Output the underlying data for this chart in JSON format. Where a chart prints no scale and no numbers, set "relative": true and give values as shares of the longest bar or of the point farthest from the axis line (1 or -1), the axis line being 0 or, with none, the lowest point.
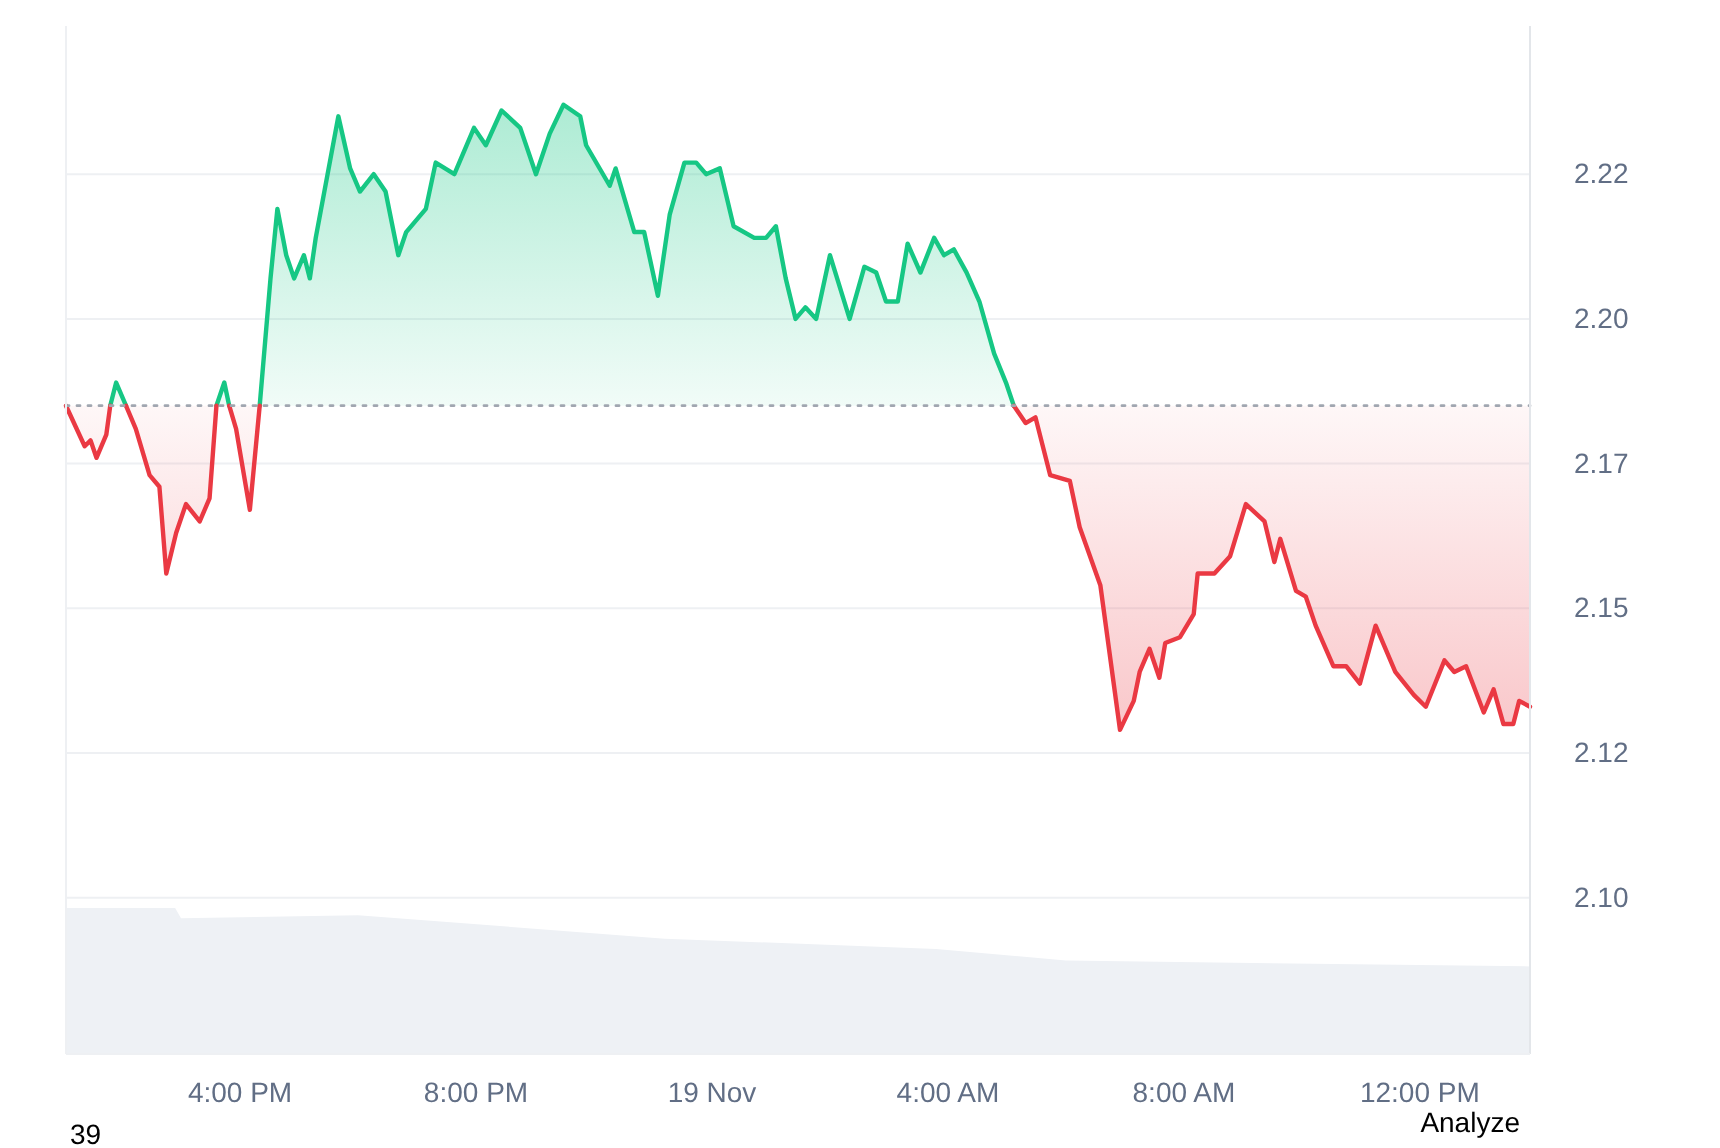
{
  "chart_data": [
    {
      "type": "line",
      "xlim": [
        "--11-18T13:03",
        "--11-19T13:52"
      ],
      "ylim": [
        2.073,
        2.2506
      ],
      "xticks": [
        {
          "value": "--11-18T16:00",
          "label": "4:00 PM"
        },
        {
          "value": "--11-18T20:00",
          "label": "8:00 PM"
        },
        {
          "value": "--11-19T00:00",
          "label": "19 Nov"
        },
        {
          "value": "--11-19T04:00",
          "label": "4:00 AM"
        },
        {
          "value": "--11-19T08:00",
          "label": "8:00 AM"
        },
        {
          "value": "--11-19T12:00",
          "label": "12:00 PM"
        }
      ],
      "yticks": [
        {
          "value": 2.1,
          "label": "2.10"
        },
        {
          "value": 2.125,
          "label": "2.12"
        },
        {
          "value": 2.15,
          "label": "2.15"
        },
        {
          "value": 2.175,
          "label": "2.17"
        },
        {
          "value": 2.2,
          "label": "2.20"
        },
        {
          "value": 2.225,
          "label": "2.22"
        }
      ],
      "grid": "y",
      "marker": "none",
      "line_style": "solid",
      "ref_lines": [
        {
          "axis": "y",
          "value": 2.185,
          "color": "#a0a6b0",
          "line_style": "dotted"
        }
      ],
      "series": [
        {
          "color": "#16c784",
          "x": [
            "--11-18T13:48",
            "--11-18T13:54",
            "--11-18T14:04",
            "--11-18T14:14",
            "--11-18T15:36",
            "--11-18T15:44",
            "--11-18T15:49",
            "--11-18T15:56",
            "--11-18T16:20",
            "--11-18T16:31",
            "--11-18T16:38",
            "--11-18T16:47",
            "--11-18T16:55",
            "--11-18T17:05",
            "--11-18T17:11",
            "--11-18T17:17",
            "--11-18T17:40",
            "--11-18T17:52",
            "--11-18T18:02",
            "--11-18T18:16",
            "--11-18T18:28",
            "--11-18T18:41",
            "--11-18T18:49",
            "--11-18T19:09",
            "--11-18T19:19",
            "--11-18T19:38",
            "--11-18T19:58",
            "--11-18T20:10",
            "--11-18T20:26",
            "--11-18T20:45",
            "--11-18T21:01",
            "--11-18T21:15",
            "--11-18T21:29",
            "--11-18T21:46",
            "--11-18T21:52",
            "--11-18T22:16",
            "--11-18T22:22",
            "--11-18T22:41",
            "--11-18T22:51",
            "--11-18T23:05",
            "--11-18T23:17",
            "--11-18T23:32",
            "--11-18T23:44",
            "--11-18T23:54",
            "--11-19T00:08",
            "--11-19T00:22",
            "--11-19T00:43",
            "--11-19T00:55",
            "--11-19T01:05",
            "--11-19T01:15",
            "--11-19T01:25",
            "--11-19T01:35",
            "--11-19T01:46",
            "--11-19T02:00",
            "--11-19T02:20",
            "--11-19T02:35",
            "--11-19T02:47",
            "--11-19T02:57",
            "--11-19T03:09",
            "--11-19T03:19",
            "--11-19T03:32",
            "--11-19T03:46",
            "--11-19T03:56",
            "--11-19T04:06",
            "--11-19T04:19",
            "--11-19T04:32",
            "--11-19T04:47",
            "--11-19T04:59",
            "--11-19T05:07"
          ],
          "values": [
            2.185,
            2.189,
            2.185,
            null,
            2.185,
            2.189,
            2.185,
            null,
            2.185,
            2.207,
            2.219,
            2.211,
            2.207,
            2.211,
            2.207,
            2.214,
            2.235,
            2.226,
            2.222,
            2.225,
            2.222,
            2.211,
            2.215,
            2.219,
            2.227,
            2.225,
            2.233,
            2.23,
            2.236,
            2.233,
            2.225,
            2.232,
            2.237,
            2.235,
            2.23,
            2.223,
            2.226,
            2.215,
            2.215,
            2.204,
            2.218,
            2.227,
            2.227,
            2.225,
            2.226,
            2.216,
            2.214,
            2.214,
            2.216,
            2.207,
            2.2,
            2.202,
            2.2,
            2.211,
            2.2,
            2.209,
            2.208,
            2.203,
            2.203,
            2.213,
            2.208,
            2.214,
            2.211,
            2.212,
            2.208,
            2.203,
            2.194,
            2.189,
            2.185
          ]
        },
        {
          "color": "#ea3943",
          "x": [
            "--11-18T13:03",
            "--11-18T13:22",
            "--11-18T13:28",
            "--11-18T13:34",
            "--11-18T13:44",
            "--11-18T13:48",
            "--11-18T13:54",
            "--11-18T14:04",
            "--11-18T14:14",
            "--11-18T14:28",
            "--11-18T14:38",
            "--11-18T14:45",
            "--11-18T14:55",
            "--11-18T15:05",
            "--11-18T15:19",
            "--11-18T15:29",
            "--11-18T15:36",
            "--11-18T15:44",
            "--11-18T15:49",
            "--11-18T15:56",
            "--11-18T16:10",
            "--11-18T16:20",
            "--11-18T16:31",
            "--11-19T05:07",
            "--11-19T05:19",
            "--11-19T05:29",
            "--11-19T05:44",
            "--11-19T06:04",
            "--11-19T06:14",
            "--11-19T06:35",
            "--11-19T06:55",
            "--11-19T07:09",
            "--11-19T07:15",
            "--11-19T07:25",
            "--11-19T07:35",
            "--11-19T07:41",
            "--11-19T07:56",
            "--11-19T08:10",
            "--11-19T08:14",
            "--11-19T08:31",
            "--11-19T08:47",
            "--11-19T09:03",
            "--11-19T09:22",
            "--11-19T09:32",
            "--11-19T09:38",
            "--11-19T09:54",
            "--11-19T10:04",
            "--11-19T10:14",
            "--11-19T10:32",
            "--11-19T10:45",
            "--11-19T10:59",
            "--11-19T11:15",
            "--11-19T11:35",
            "--11-19T11:54",
            "--11-19T12:06",
            "--11-19T12:25",
            "--11-19T12:35",
            "--11-19T12:47",
            "--11-19T13:05",
            "--11-19T13:15",
            "--11-19T13:25",
            "--11-19T13:35",
            "--11-19T13:41",
            "--11-19T13:52"
          ],
          "values": [
            2.185,
            2.178,
            2.179,
            2.176,
            2.18,
            2.185,
            null,
            2.185,
            2.181,
            2.173,
            2.171,
            2.156,
            2.163,
            2.168,
            2.165,
            2.169,
            2.185,
            null,
            2.185,
            2.181,
            2.167,
            2.185,
            null,
            2.185,
            2.182,
            2.183,
            2.173,
            2.172,
            2.164,
            2.154,
            2.129,
            2.134,
            2.139,
            2.143,
            2.138,
            2.144,
            2.145,
            2.149,
            2.156,
            2.156,
            2.159,
            2.168,
            2.165,
            2.158,
            2.162,
            2.153,
            2.152,
            2.147,
            2.14,
            2.14,
            2.137,
            2.147,
            2.139,
            2.135,
            2.133,
            2.141,
            2.139,
            2.14,
            2.132,
            2.136,
            2.13,
            2.13,
            2.134,
            2.133
          ]
        }
      ],
      "annotations": [
        "39",
        "Analyze"
      ]
    },
    {
      "type": "area",
      "relative": true,
      "xlim": [
        "--11-18T13:03",
        "--11-19T13:52"
      ],
      "series": [
        {
          "color": "#eef1f5",
          "x": [
            "--11-18T13:03",
            "--11-18T14:54",
            "--11-18T15:00",
            "--11-18T18:00",
            "--11-18T23:12",
            "--11-19T03:48",
            "--11-19T06:00",
            "--11-19T13:52"
          ],
          "values": [
            1,
            1,
            0.93,
            0.95,
            0.79,
            0.72,
            0.64,
            0.6
          ]
        }
      ]
    }
  ]
}
